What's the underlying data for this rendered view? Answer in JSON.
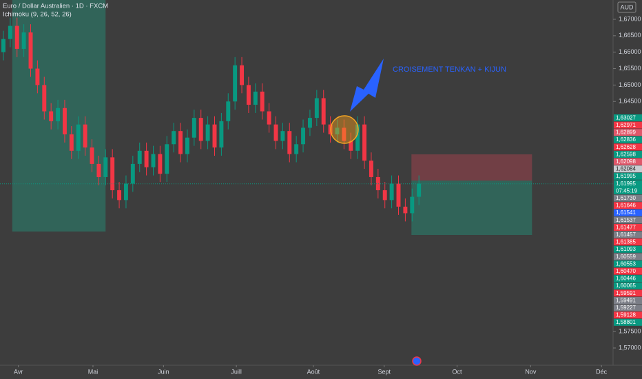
{
  "chart_data": {
    "type": "candlestick",
    "title": "Euro / Dollar Australien · 1D · FXCM",
    "subtitle": "Ichimoku (9, 26, 52, 26)",
    "currency": "AUD",
    "annotation": "CROISEMENT TENKAN + KIJUN",
    "up_color": "#089981",
    "down_color": "#f23645",
    "x": [
      0,
      1,
      2,
      3,
      4,
      5,
      6,
      7,
      8,
      9,
      10,
      11,
      12,
      13,
      14,
      15,
      16,
      17,
      18,
      19,
      20,
      21,
      22,
      23,
      24,
      25,
      26,
      27,
      28,
      29,
      30,
      31,
      32,
      33,
      34,
      35,
      36,
      37,
      38,
      39,
      40,
      41,
      42,
      43,
      44,
      45,
      46,
      47,
      48,
      49,
      50,
      51,
      52,
      53,
      54,
      55,
      56,
      57,
      58,
      59,
      60,
      61
    ],
    "open": [
      1.66,
      1.664,
      1.668,
      1.661,
      1.666,
      1.655,
      1.65,
      1.642,
      1.639,
      1.643,
      1.635,
      1.63,
      1.638,
      1.631,
      1.626,
      1.622,
      1.628,
      1.618,
      1.615,
      1.62,
      1.626,
      1.63,
      1.625,
      1.629,
      1.623,
      1.632,
      1.636,
      1.629,
      1.634,
      1.64,
      1.633,
      1.638,
      1.631,
      1.639,
      1.645,
      1.656,
      1.65,
      1.644,
      1.648,
      1.642,
      1.638,
      1.633,
      1.636,
      1.629,
      1.632,
      1.637,
      1.64,
      1.646,
      1.638,
      1.635,
      1.637,
      1.633,
      1.63,
      1.638,
      1.627,
      1.622,
      1.618,
      1.615,
      1.62,
      1.613,
      1.611,
      1.616
    ],
    "high": [
      1.6665,
      1.6705,
      1.6705,
      1.6685,
      1.6685,
      1.6575,
      1.6525,
      1.6445,
      1.6455,
      1.6455,
      1.6375,
      1.6405,
      1.6405,
      1.6335,
      1.6285,
      1.6305,
      1.6305,
      1.6205,
      1.6225,
      1.6285,
      1.6325,
      1.6325,
      1.6315,
      1.6315,
      1.6345,
      1.6385,
      1.6385,
      1.6365,
      1.6425,
      1.6425,
      1.6405,
      1.6405,
      1.6415,
      1.6475,
      1.6585,
      1.6585,
      1.6525,
      1.6505,
      1.6505,
      1.6445,
      1.6405,
      1.6385,
      1.6385,
      1.6345,
      1.6395,
      1.6425,
      1.6485,
      1.6485,
      1.6405,
      1.6395,
      1.6395,
      1.6355,
      1.6405,
      1.6405,
      1.6295,
      1.6245,
      1.6205,
      1.6225,
      1.6225,
      1.6155,
      1.6185,
      1.6225
    ],
    "low": [
      1.6575,
      1.6615,
      1.6585,
      1.6585,
      1.6525,
      1.6475,
      1.6395,
      1.6365,
      1.6365,
      1.6325,
      1.6275,
      1.6275,
      1.6285,
      1.6235,
      1.6195,
      1.6195,
      1.6155,
      1.6125,
      1.6125,
      1.6175,
      1.6235,
      1.6225,
      1.6225,
      1.6205,
      1.6205,
      1.6295,
      1.6265,
      1.6265,
      1.6315,
      1.6305,
      1.6305,
      1.6285,
      1.6285,
      1.6365,
      1.6425,
      1.6475,
      1.6415,
      1.6415,
      1.6395,
      1.6355,
      1.6305,
      1.6305,
      1.6265,
      1.6265,
      1.6295,
      1.6345,
      1.6375,
      1.6355,
      1.6325,
      1.6325,
      1.6305,
      1.6275,
      1.6275,
      1.6245,
      1.6195,
      1.6155,
      1.6125,
      1.6125,
      1.6105,
      1.6085,
      1.6085,
      1.6135
    ],
    "close": [
      1.664,
      1.668,
      1.661,
      1.666,
      1.655,
      1.65,
      1.642,
      1.639,
      1.643,
      1.635,
      1.63,
      1.638,
      1.631,
      1.626,
      1.622,
      1.628,
      1.618,
      1.615,
      1.62,
      1.626,
      1.63,
      1.625,
      1.629,
      1.623,
      1.632,
      1.636,
      1.629,
      1.634,
      1.64,
      1.633,
      1.638,
      1.631,
      1.639,
      1.645,
      1.656,
      1.65,
      1.644,
      1.648,
      1.642,
      1.638,
      1.633,
      1.636,
      1.629,
      1.632,
      1.637,
      1.64,
      1.646,
      1.638,
      1.635,
      1.637,
      1.633,
      1.63,
      1.638,
      1.627,
      1.622,
      1.618,
      1.615,
      1.62,
      1.613,
      1.611,
      1.616,
      1.62
    ],
    "xlim": [
      -0.5,
      89.5
    ],
    "xticks": [
      {
        "value": 2.2,
        "label": "Avr"
      },
      {
        "value": 13.15,
        "label": "Mai"
      },
      {
        "value": 23.5,
        "label": "Juin"
      },
      {
        "value": 34.2,
        "label": "Juill"
      },
      {
        "value": 45.5,
        "label": "Août"
      },
      {
        "value": 55.9,
        "label": "Sept"
      },
      {
        "value": 66.6,
        "label": "Oct"
      },
      {
        "value": 77.4,
        "label": "Nov"
      },
      {
        "value": 87.8,
        "label": "Déc"
      }
    ],
    "ylim": [
      1.56476,
      1.67587
    ],
    "yticks": [
      {
        "value": 1.67,
        "label": "1,67000"
      },
      {
        "value": 1.665,
        "label": "1,66500"
      },
      {
        "value": 1.66,
        "label": "1,66000"
      },
      {
        "value": 1.655,
        "label": "1,65500"
      },
      {
        "value": 1.65,
        "label": "1,65000"
      },
      {
        "value": 1.645,
        "label": "1,64500"
      },
      {
        "value": 1.575,
        "label": "1,57500"
      },
      {
        "value": 1.57,
        "label": "1,57000"
      }
    ],
    "zones": [
      {
        "x": [
          1.3,
          15.0
        ],
        "y": [
          1.67587,
          1.60543
        ],
        "color": "#2f6b5e"
      },
      {
        "x": [
          59.9,
          77.6
        ],
        "y": [
          1.62891,
          1.62094
        ],
        "color": "#7a3f47"
      },
      {
        "x": [
          59.9,
          77.6
        ],
        "y": [
          1.62094,
          1.60438
        ],
        "color": "#2f6b5e"
      }
    ],
    "price_tags": [
      {
        "value": 1.63027,
        "label": "1,63027",
        "color": "#089981"
      },
      {
        "value": 1.62971,
        "label": "1,62971",
        "color": "#f23645"
      },
      {
        "value": 1.62899,
        "label": "1,62899",
        "color": "#e0576a"
      },
      {
        "value": 1.62836,
        "label": "1,62836",
        "color": "#089981"
      },
      {
        "value": 1.62628,
        "label": "1,62628",
        "color": "#f23645"
      },
      {
        "value": 1.62598,
        "label": "1,62598",
        "color": "#089981"
      },
      {
        "value": 1.62098,
        "label": "1,62098",
        "color": "#e0576a"
      },
      {
        "value": 1.62084,
        "label": "1,62084",
        "color": "#c9ccd1"
      },
      {
        "value": 1.61995,
        "label": "1,61995",
        "color": "#089981"
      },
      {
        "value": 1.61995,
        "label": "1,61995",
        "color": "#089981",
        "countdown": "07:45:19"
      },
      {
        "value": 1.6173,
        "label": "1,61730",
        "color": "#7b7e87"
      },
      {
        "value": 1.61646,
        "label": "1,61646",
        "color": "#f23645"
      },
      {
        "value": 1.61541,
        "label": "1,61541",
        "color": "#2962ff"
      },
      {
        "value": 1.61537,
        "label": "1,61537",
        "color": "#7b7e87"
      },
      {
        "value": 1.61477,
        "label": "1,61477",
        "color": "#f23645"
      },
      {
        "value": 1.61457,
        "label": "1,61457",
        "color": "#7b7e87"
      },
      {
        "value": 1.61385,
        "label": "1,61385",
        "color": "#f23645"
      },
      {
        "value": 1.61093,
        "label": "1,61093",
        "color": "#089981"
      },
      {
        "value": 1.60559,
        "label": "1,60559",
        "color": "#7b7e87"
      },
      {
        "value": 1.60553,
        "label": "1,60553",
        "color": "#089981"
      },
      {
        "value": 1.6047,
        "label": "1,60470",
        "color": "#f23645"
      },
      {
        "value": 1.60446,
        "label": "1,60446",
        "color": "#089981"
      },
      {
        "value": 1.60065,
        "label": "1,60065",
        "color": "#089981"
      },
      {
        "value": 1.59591,
        "label": "1,59591",
        "color": "#f23645"
      },
      {
        "value": 1.59491,
        "label": "1,59491",
        "color": "#7b7e87"
      },
      {
        "value": 1.59227,
        "label": "1,59227",
        "color": "#7b7e87"
      },
      {
        "value": 1.59128,
        "label": "1,59128",
        "color": "#f23645"
      },
      {
        "value": 1.58801,
        "label": "1,58801",
        "color": "#089981"
      }
    ]
  }
}
